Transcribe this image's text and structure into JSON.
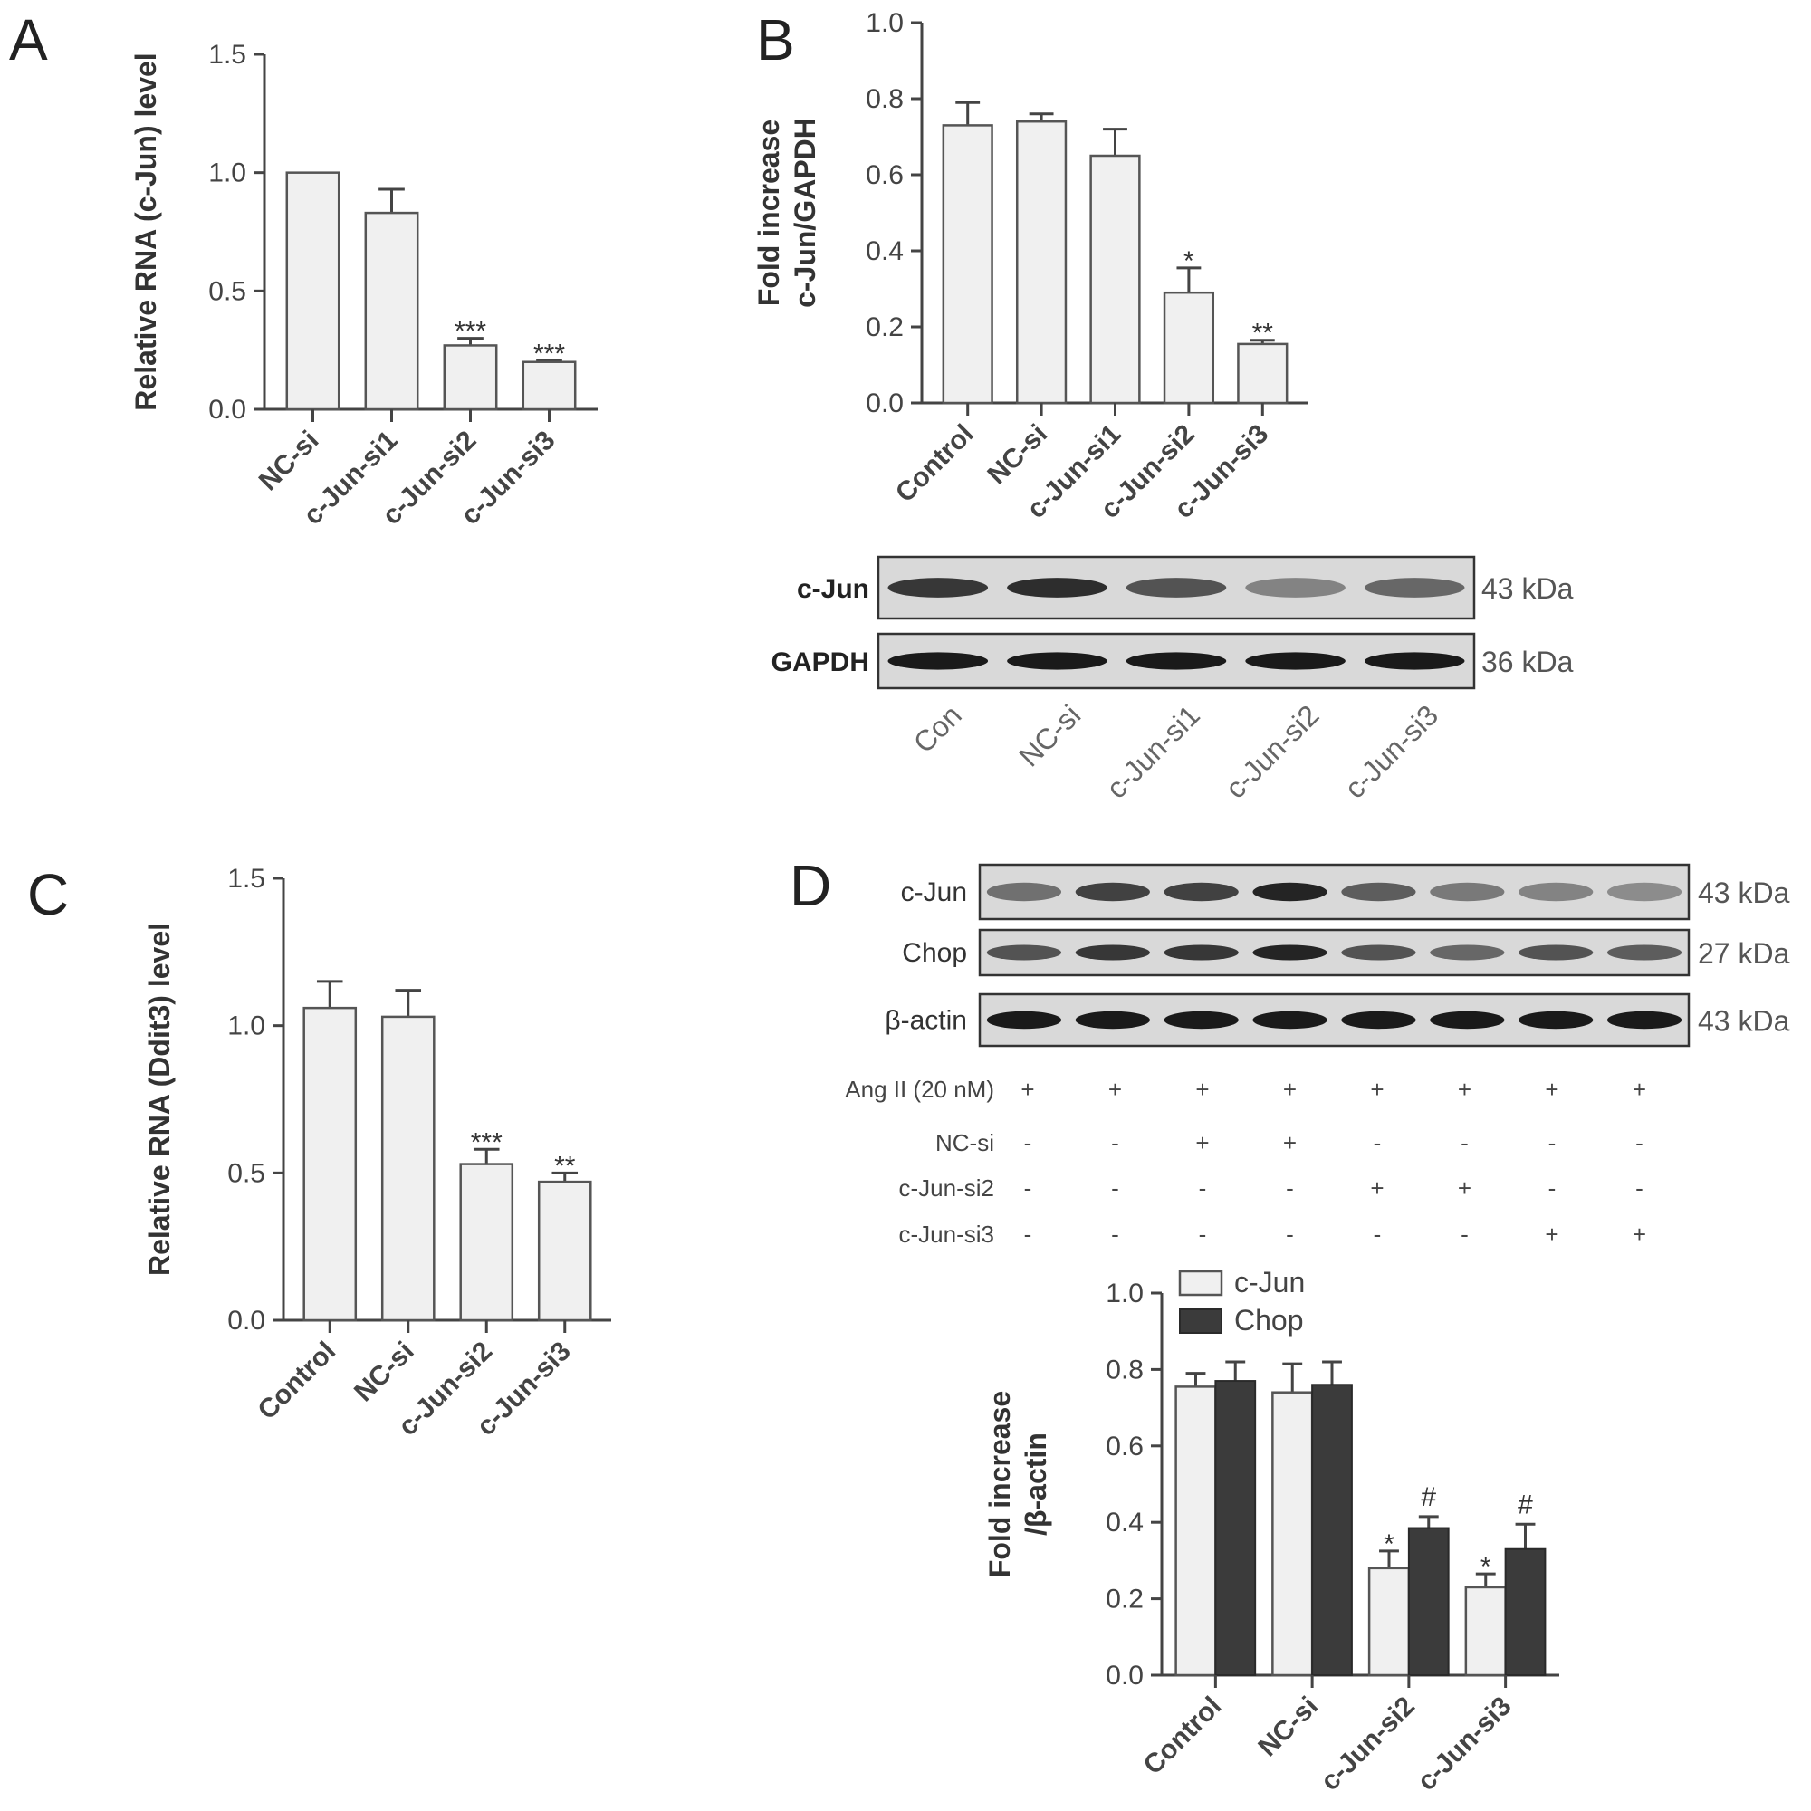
{
  "panels": {
    "A": {
      "letter": "A"
    },
    "B": {
      "letter": "B"
    },
    "C": {
      "letter": "C"
    },
    "D": {
      "letter": "D"
    }
  },
  "chart_data": [
    {
      "id": "A",
      "type": "bar",
      "ylabel": "Relative RNA (c-Jun) level",
      "ylim": [
        0,
        1.5
      ],
      "yticks": [
        "0.0",
        "0.5",
        "1.0",
        "1.5"
      ],
      "categories": [
        "NC-si",
        "c-Jun-si1",
        "c-Jun-si2",
        "c-Jun-si3"
      ],
      "values": [
        1.0,
        0.83,
        0.27,
        0.2
      ],
      "errors": [
        0,
        0.1,
        0.03,
        0.005
      ],
      "annotations": [
        "",
        "",
        "***",
        "***"
      ]
    },
    {
      "id": "B",
      "type": "bar",
      "ylabel_line1": "Fold increase",
      "ylabel_line2": "c-Jun/GAPDH",
      "ylim": [
        0,
        1.0
      ],
      "yticks": [
        "0.0",
        "0.2",
        "0.4",
        "0.6",
        "0.8",
        "1.0"
      ],
      "categories": [
        "Control",
        "NC-si",
        "c-Jun-si1",
        "c-Jun-si2",
        "c-Jun-si3"
      ],
      "values": [
        0.73,
        0.74,
        0.65,
        0.29,
        0.155
      ],
      "errors": [
        0.06,
        0.02,
        0.07,
        0.065,
        0.01
      ],
      "annotations": [
        "",
        "",
        "",
        "*",
        "**"
      ]
    },
    {
      "id": "C",
      "type": "bar",
      "ylabel": "Relative RNA (Ddit3) level",
      "ylim": [
        0,
        1.5
      ],
      "yticks": [
        "0.0",
        "0.5",
        "1.0",
        "1.5"
      ],
      "categories": [
        "Control",
        "NC-si",
        "c-Jun-si2",
        "c-Jun-si3"
      ],
      "values": [
        1.06,
        1.03,
        0.53,
        0.47
      ],
      "errors": [
        0.09,
        0.09,
        0.05,
        0.03
      ],
      "annotations": [
        "",
        "",
        "***",
        "**"
      ]
    },
    {
      "id": "D",
      "type": "bar",
      "ylabel_line1": "Fold increase",
      "ylabel_line2": "/β-actin",
      "ylim": [
        0,
        1.0
      ],
      "yticks": [
        "0.0",
        "0.2",
        "0.4",
        "0.6",
        "0.8",
        "1.0"
      ],
      "categories": [
        "Control",
        "NC-si",
        "c-Jun-si2",
        "c-Jun-si3"
      ],
      "legend_position": "top-left",
      "series": [
        {
          "name": "c-Jun",
          "color": "#f0f0f0",
          "values": [
            0.755,
            0.74,
            0.28,
            0.23
          ],
          "errors": [
            0.035,
            0.075,
            0.045,
            0.035
          ],
          "annotations": [
            "",
            "",
            "*",
            "*"
          ]
        },
        {
          "name": "Chop",
          "color": "#3b3b3b",
          "values": [
            0.77,
            0.76,
            0.385,
            0.33
          ],
          "errors": [
            0.05,
            0.06,
            0.03,
            0.065
          ],
          "annotations": [
            "",
            "",
            "#",
            "#"
          ]
        }
      ]
    }
  ],
  "blotB": {
    "rows": [
      {
        "name": "c-Jun",
        "kda": "43 kDa"
      },
      {
        "name": "GAPDH",
        "kda": "36 kDa"
      }
    ],
    "lanes": [
      "Con",
      "NC-si",
      "c-Jun-si1",
      "c-Jun-si2",
      "c-Jun-si3"
    ]
  },
  "blotD": {
    "rows": [
      {
        "name": "c-Jun",
        "kda": "43 kDa"
      },
      {
        "name": "Chop",
        "kda": "27 kDa"
      },
      {
        "name": "β-actin",
        "kda": "43 kDa"
      }
    ],
    "conditions": [
      {
        "label": "Ang II (20 nM)",
        "marks": [
          "+",
          "+",
          "+",
          "+",
          "+",
          "+",
          "+",
          "+"
        ]
      },
      {
        "label": "NC-si",
        "marks": [
          "-",
          "-",
          "+",
          "+",
          "-",
          "-",
          "-",
          "-"
        ]
      },
      {
        "label": "c-Jun-si2",
        "marks": [
          "-",
          "-",
          "-",
          "-",
          "+",
          "+",
          "-",
          "-"
        ]
      },
      {
        "label": "c-Jun-si3",
        "marks": [
          "-",
          "-",
          "-",
          "-",
          "-",
          "-",
          "+",
          "+"
        ]
      }
    ]
  }
}
